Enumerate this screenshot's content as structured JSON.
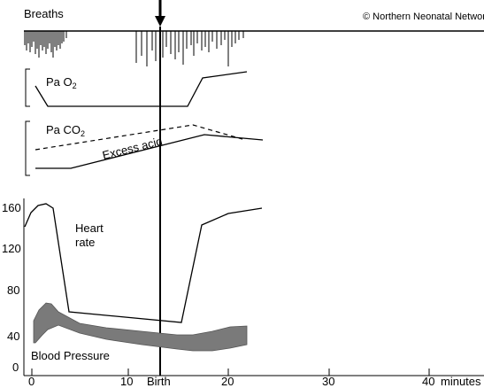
{
  "labels": {
    "breaths": "Breaths",
    "copyright": "© Northern Neonatal Network",
    "pao2": "Pa O",
    "pao2_sub": "2",
    "paco2": "Pa CO",
    "paco2_sub": "2",
    "excess_acid": "Excess acid",
    "heart_rate_line1": "Heart",
    "heart_rate_line2": "rate",
    "blood_pressure": "Blood Pressure",
    "birth": "Birth",
    "minutes": "minutes"
  },
  "y_ticks": [
    "160",
    "120",
    "80",
    "40",
    "0"
  ],
  "x_ticks": [
    "0",
    "10",
    "20",
    "30",
    "40"
  ],
  "colors": {
    "line": "#000000",
    "blood_pressure_band": "#7a7a7a"
  }
}
